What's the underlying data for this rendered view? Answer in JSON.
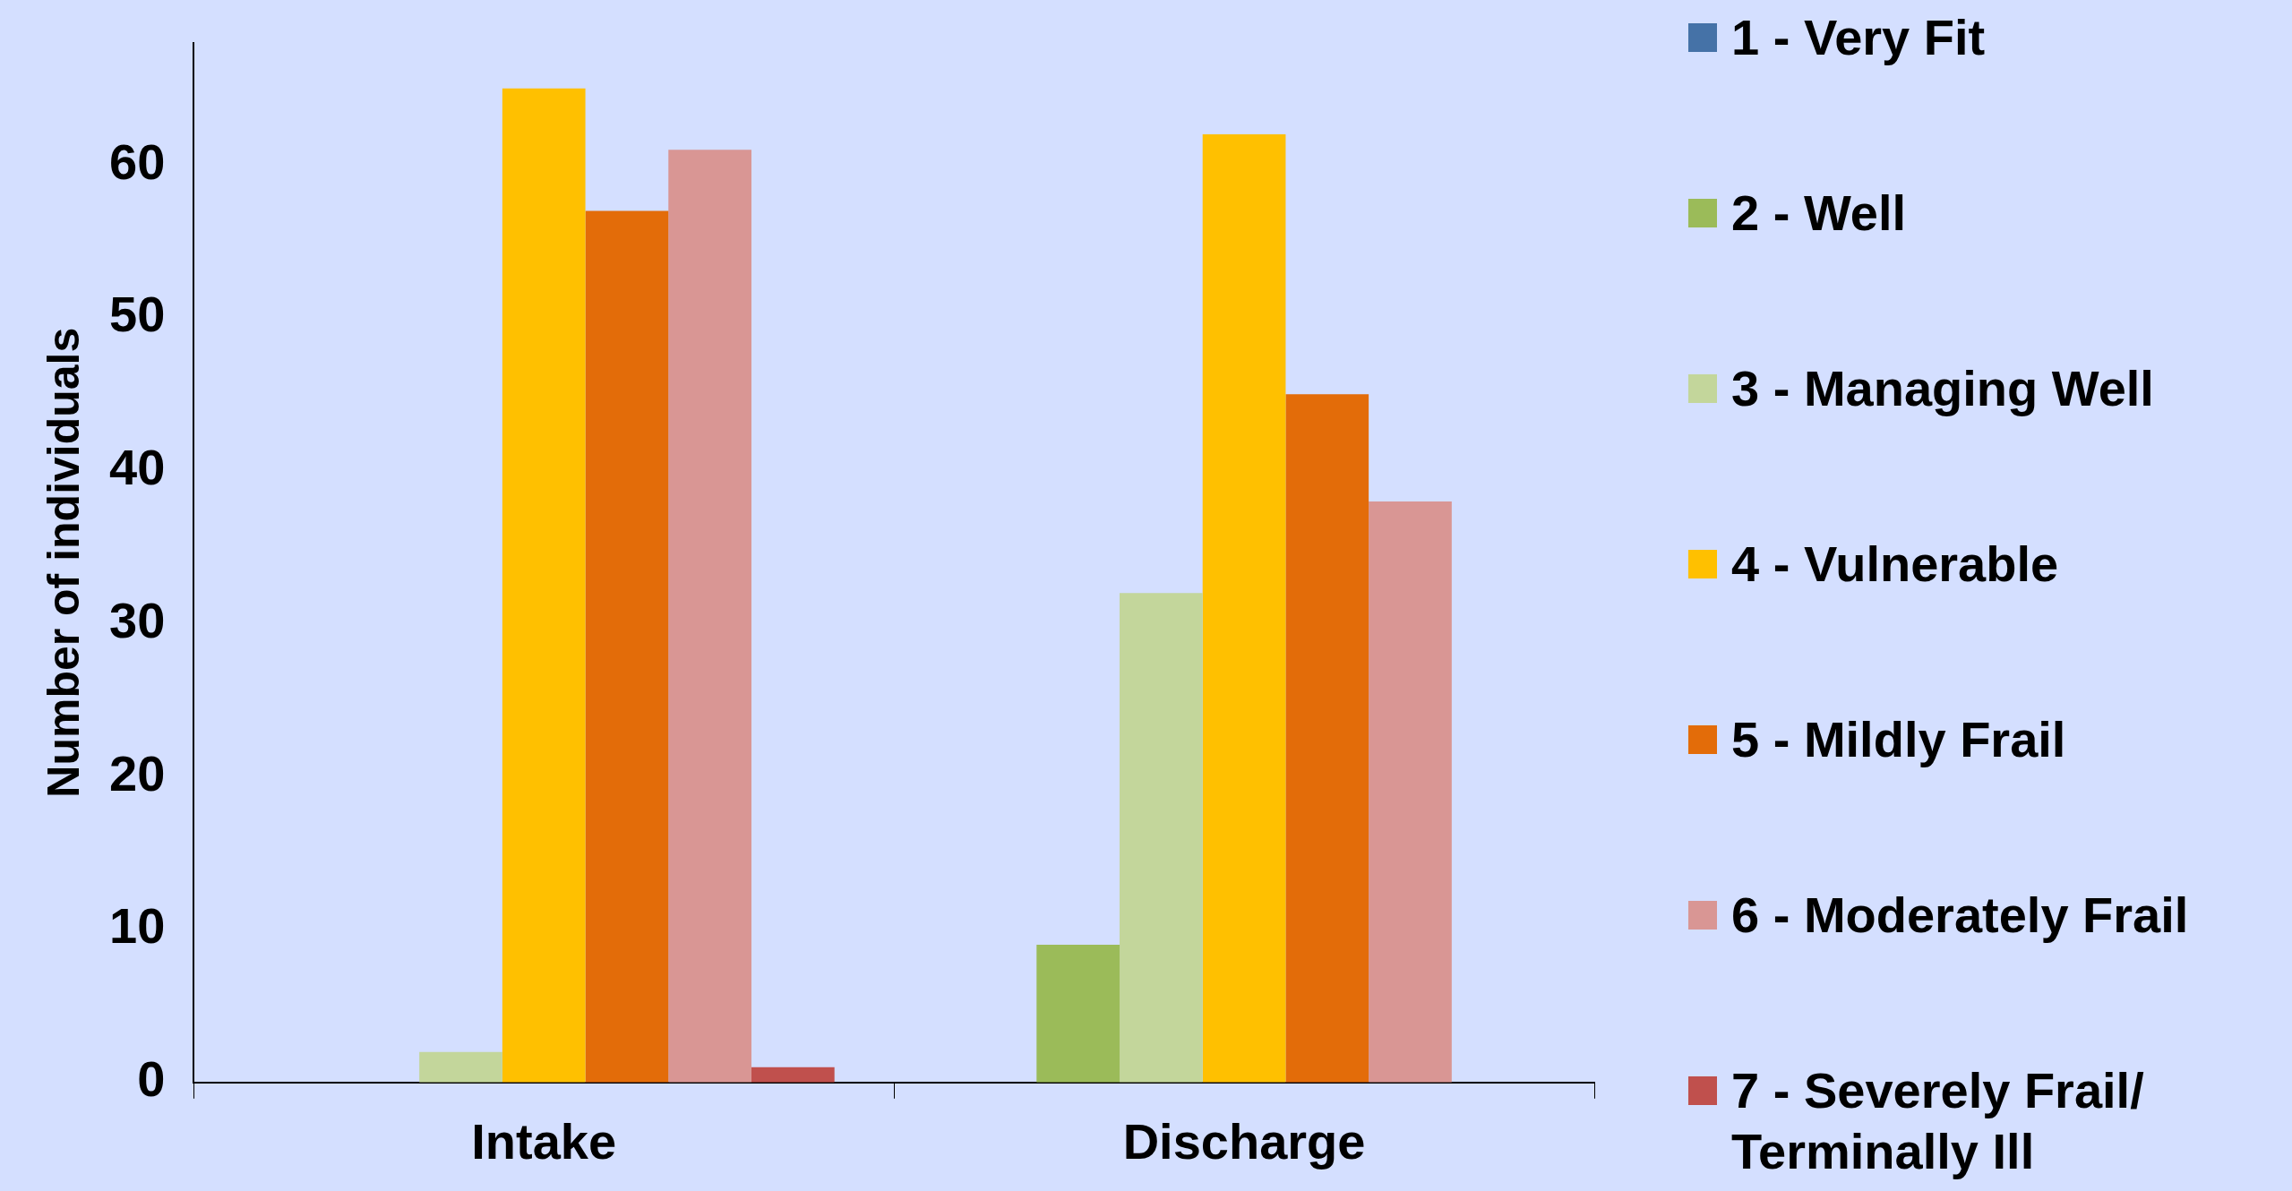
{
  "chart_data": {
    "type": "bar",
    "ylabel": "Number of individuals",
    "categories": [
      "Intake",
      "Discharge"
    ],
    "series": [
      {
        "name": "1 - Very Fit",
        "color": "#4572a7",
        "values": [
          0,
          0
        ]
      },
      {
        "name": "2 - Well",
        "color": "#9bbb59",
        "values": [
          0,
          9
        ]
      },
      {
        "name": "3 - Managing Well",
        "color": "#c3d69b",
        "values": [
          2,
          32
        ]
      },
      {
        "name": "4 - Vulnerable",
        "color": "#ffc000",
        "values": [
          65,
          62
        ]
      },
      {
        "name": "5 - Mildly Frail",
        "color": "#e36c09",
        "values": [
          57,
          45
        ]
      },
      {
        "name": "6 - Moderately Frail",
        "color": "#d99694",
        "values": [
          61,
          38
        ]
      },
      {
        "name": "7 - Severely Frail/ Terminally Ill",
        "color": "#c0504d",
        "values": [
          1,
          0
        ]
      }
    ],
    "ylim": [
      0,
      68
    ],
    "yticks": [
      0,
      10,
      20,
      30,
      40,
      50,
      60
    ],
    "grid": false,
    "legend": "right"
  }
}
